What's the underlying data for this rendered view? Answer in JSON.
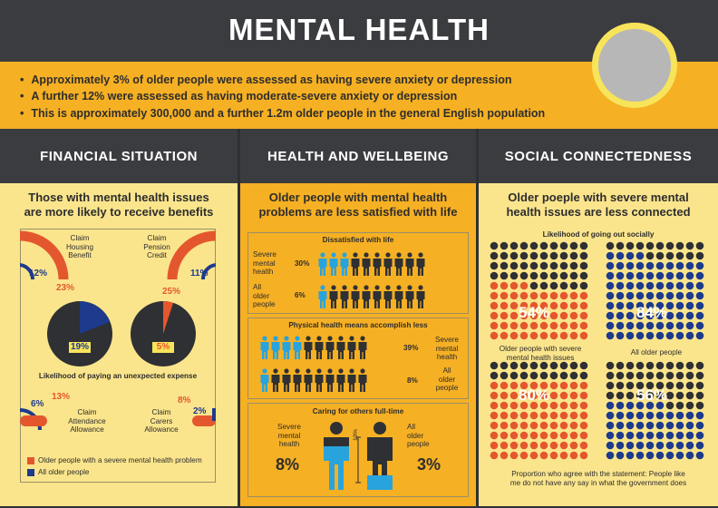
{
  "header": {
    "title": "MENTAL HEALTH"
  },
  "intro": {
    "bullets": [
      "Approximately 3% of older people were assessed as having severe anxiety or depression",
      "A further 12% were assessed as having moderate-severe anxiety or depression",
      "This is approximately 300,000 and a further 1.2m older people in the general English population"
    ]
  },
  "sections": {
    "financial": {
      "heading": "FINANCIAL SITUATION",
      "title_l1": "Those with mental health issues",
      "title_l2": "are more likely to receive benefits",
      "housing": {
        "label_l1": "Claim",
        "label_l2": "Housing",
        "label_l3": "Benefit",
        "all": "12%",
        "severe": "23%"
      },
      "pension": {
        "label_l1": "Claim",
        "label_l2": "Pension",
        "label_l3": "Credit",
        "all": "11%",
        "severe": "25%"
      },
      "expense": {
        "caption": "Likelihood of paying an unexpected expense",
        "all_label": "19%",
        "severe_label": "5%",
        "all_value": 19,
        "severe_value": 5
      },
      "attendance": {
        "label_l1": "Claim",
        "label_l2": "Attendance",
        "label_l3": "Allowance",
        "all": "6%",
        "severe": "13%"
      },
      "carers": {
        "label_l1": "Claim",
        "label_l2": "Carers",
        "label_l3": "Allowance",
        "all": "2%",
        "severe": "8%"
      },
      "legend": {
        "severe": "Older people with a severe mental health problem",
        "all": "All older people"
      }
    },
    "health": {
      "heading": "HEALTH AND WELLBEING",
      "title_l1": "Older people with mental health",
      "title_l2": "problems are less satisfied with life",
      "dissatisfied": {
        "title": "Dissatisfied with life",
        "severe_l1": "Severe",
        "severe_l2": "mental",
        "severe_l3": "health",
        "severe_pct": "30%",
        "all_l1": "All",
        "all_l2": "older",
        "all_l3": "people",
        "all_pct": "6%"
      },
      "physical": {
        "title": "Physical health means accomplish less",
        "severe_pct": "39%",
        "severe_l1": "Severe",
        "severe_l2": "mental",
        "severe_l3": "health",
        "all_pct": "8%",
        "all_l1": "All",
        "all_l2": "older",
        "all_l3": "people"
      },
      "caring": {
        "title": "Caring for others full-time",
        "severe_l1": "Severe",
        "severe_l2": "mental",
        "severe_l3": "health",
        "severe_pct": "8%",
        "all_l1": "All",
        "all_l2": "older",
        "all_l3": "people",
        "all_pct": "3%",
        "scale": "10%"
      }
    },
    "social": {
      "heading": "SOCIAL CONNECTEDNESS",
      "title_l1": "Older poeple with severe mental",
      "title_l2": "health issues are less connected",
      "going_out": {
        "caption": "Likelihood of going out socially",
        "severe_pct": "54%",
        "all_pct": "84%",
        "severe_label_l1": "Older people with severe",
        "severe_label_l2": "mental health issues",
        "all_label": "All older people",
        "severe_value": 54,
        "all_value": 84
      },
      "say": {
        "severe_pct": "80%",
        "all_pct": "56%",
        "severe_value": 80,
        "all_value": 56,
        "caption_l1": "Proportion who agree with the statement: People like",
        "caption_l2": "me do not have any say in what the government does"
      }
    }
  },
  "colors": {
    "orange": "#f6b023",
    "light": "#fbe58c",
    "dark": "#3b3c40",
    "red": "#e4572e",
    "blue": "#1d3a8c",
    "cyan": "#29a3dc"
  }
}
